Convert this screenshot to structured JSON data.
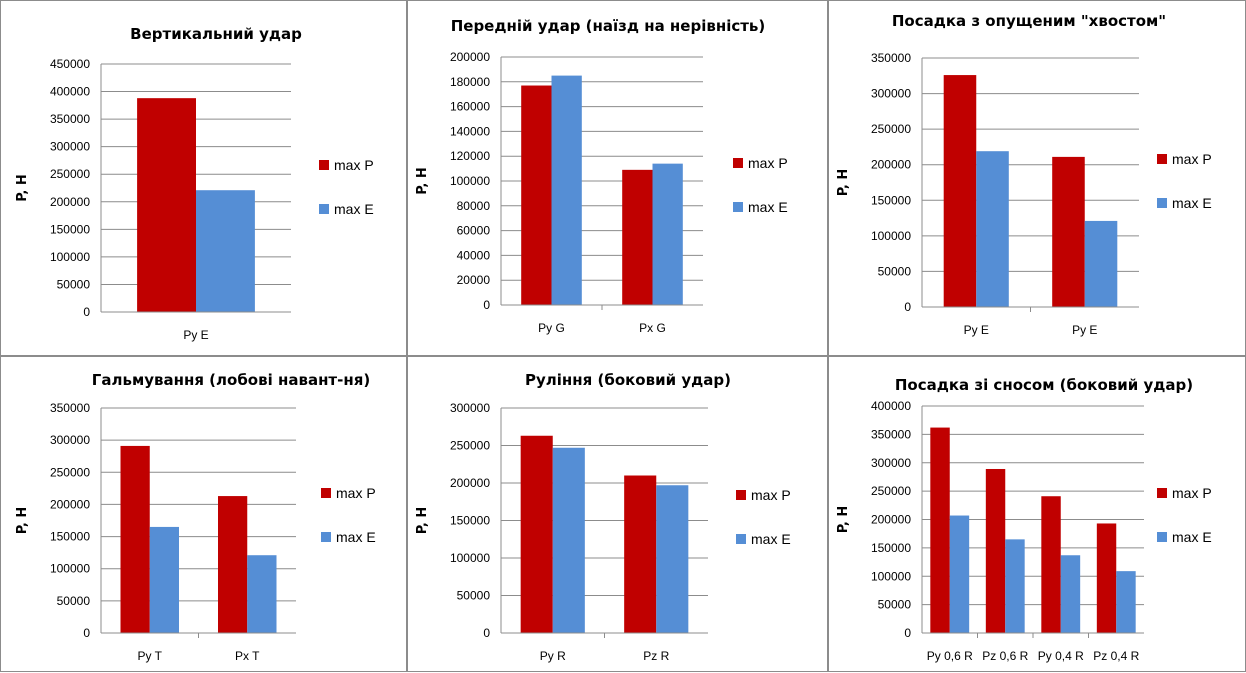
{
  "colors": {
    "max_p": "#C00000",
    "max_e": "#558ED5",
    "grid": "#8C8C8C"
  },
  "chart_data": [
    {
      "type": "bar",
      "title": "Вертикальний удар",
      "ylabel": "P, Н",
      "ylim": [
        0,
        450000
      ],
      "yticks": [
        0,
        50000,
        100000,
        150000,
        200000,
        250000,
        300000,
        350000,
        400000,
        450000
      ],
      "categories": [
        "Py E"
      ],
      "series": [
        {
          "name": "max P",
          "values": [
            388000
          ]
        },
        {
          "name": "max E",
          "values": [
            221000
          ]
        }
      ]
    },
    {
      "type": "bar",
      "title": "Передній удар (наїзд на нерівність)",
      "ylabel": "P, Н",
      "ylim": [
        0,
        200000
      ],
      "yticks": [
        0,
        20000,
        40000,
        60000,
        80000,
        100000,
        120000,
        140000,
        160000,
        180000,
        200000
      ],
      "categories": [
        "Py G",
        "Px G"
      ],
      "series": [
        {
          "name": "max P",
          "values": [
            177000,
            109000
          ]
        },
        {
          "name": "max E",
          "values": [
            185000,
            114000
          ]
        }
      ]
    },
    {
      "type": "bar",
      "title": "Посадка з опущеним \"хвостом\"",
      "ylabel": "P, Н",
      "ylim": [
        0,
        350000
      ],
      "yticks": [
        0,
        50000,
        100000,
        150000,
        200000,
        250000,
        300000,
        350000
      ],
      "categories": [
        "Py E",
        "Py E"
      ],
      "series": [
        {
          "name": "max P",
          "values": [
            326000,
            211000
          ]
        },
        {
          "name": "max E",
          "values": [
            219000,
            121000
          ]
        }
      ]
    },
    {
      "type": "bar",
      "title": "Гальмування (лобові навант-ня)",
      "ylabel": "P, Н",
      "ylim": [
        0,
        350000
      ],
      "yticks": [
        0,
        50000,
        100000,
        150000,
        200000,
        250000,
        300000,
        350000
      ],
      "categories": [
        "Py T",
        "Px T"
      ],
      "series": [
        {
          "name": "max P",
          "values": [
            291000,
            213000
          ]
        },
        {
          "name": "max E",
          "values": [
            165000,
            121000
          ]
        }
      ]
    },
    {
      "type": "bar",
      "title": "Руління (боковий удар)",
      "ylabel": "P, Н",
      "ylim": [
        0,
        300000
      ],
      "yticks": [
        0,
        50000,
        100000,
        150000,
        200000,
        250000,
        300000
      ],
      "categories": [
        "Py R",
        "Pz R"
      ],
      "series": [
        {
          "name": "max P",
          "values": [
            263000,
            210000
          ]
        },
        {
          "name": "max E",
          "values": [
            247000,
            197000
          ]
        }
      ]
    },
    {
      "type": "bar",
      "title": "Посадка зі сносом (боковий удар)",
      "ylabel": "P, Н",
      "ylim": [
        0,
        400000
      ],
      "yticks": [
        0,
        50000,
        100000,
        150000,
        200000,
        250000,
        300000,
        350000,
        400000
      ],
      "categories": [
        "Py 0,6 R",
        "Pz 0,6 R",
        "Py 0,4 R",
        "Pz 0,4 R"
      ],
      "series": [
        {
          "name": "max P",
          "values": [
            362000,
            289000,
            241000,
            193000
          ]
        },
        {
          "name": "max E",
          "values": [
            207000,
            165000,
            137000,
            109000
          ]
        }
      ]
    }
  ]
}
